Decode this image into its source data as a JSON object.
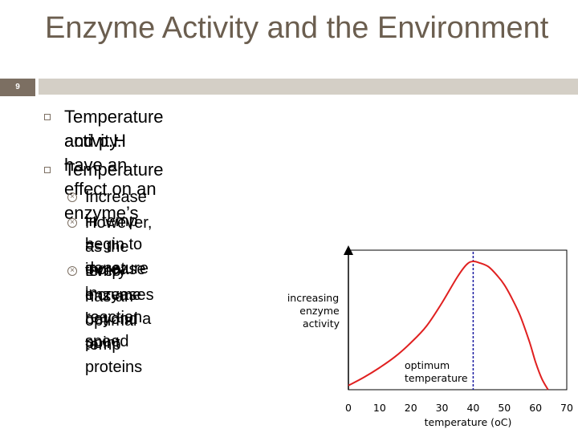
{
  "slide": {
    "number": "9",
    "title": "Enzyme Activity and the Environment",
    "bullets": [
      {
        "line1": "Temperature and p.H have an effect on an enzyme’s",
        "line2": "activity."
      },
      {
        "line1": "Temperature"
      }
    ],
    "sub_bullets": [
      {
        "line1": "Increase in temp = increase in reaction speed"
      },
      {
        "line1": "However, as the temp increases beyond a point proteins",
        "line2": "begin to denature"
      },
      {
        "line1": "Every enzyme",
        "line2": "has an optimal temp"
      }
    ]
  },
  "colors": {
    "title": "#6b5e4f",
    "band_dark": "#7c6f62",
    "band_light": "#d4cfc6",
    "curve": "#e02020",
    "optimum_line": "#1a1aa0"
  },
  "chart_data": {
    "type": "line",
    "ylabel_lines": [
      "increasing",
      "enzyme",
      "activity"
    ],
    "xlabel_prefix": "temperature (",
    "xlabel_unit": "oC",
    "xlabel_suffix": ")",
    "xticks": [
      "0",
      "10",
      "20",
      "30",
      "40",
      "50",
      "60",
      "70"
    ],
    "xlim": [
      0,
      70
    ],
    "ylim": [
      0,
      100
    ],
    "annotation": {
      "line1": "optimum",
      "line2": "temperature",
      "x": 40
    },
    "series": [
      {
        "x": [
          0,
          5,
          10,
          15,
          20,
          25,
          30,
          35,
          38,
          40,
          42,
          45,
          48,
          50,
          52,
          55,
          58,
          60,
          62,
          64
        ],
        "y": [
          3,
          9,
          16,
          24,
          34,
          46,
          63,
          82,
          91,
          93,
          92,
          89,
          82,
          76,
          68,
          54,
          35,
          20,
          8,
          0
        ]
      }
    ]
  }
}
